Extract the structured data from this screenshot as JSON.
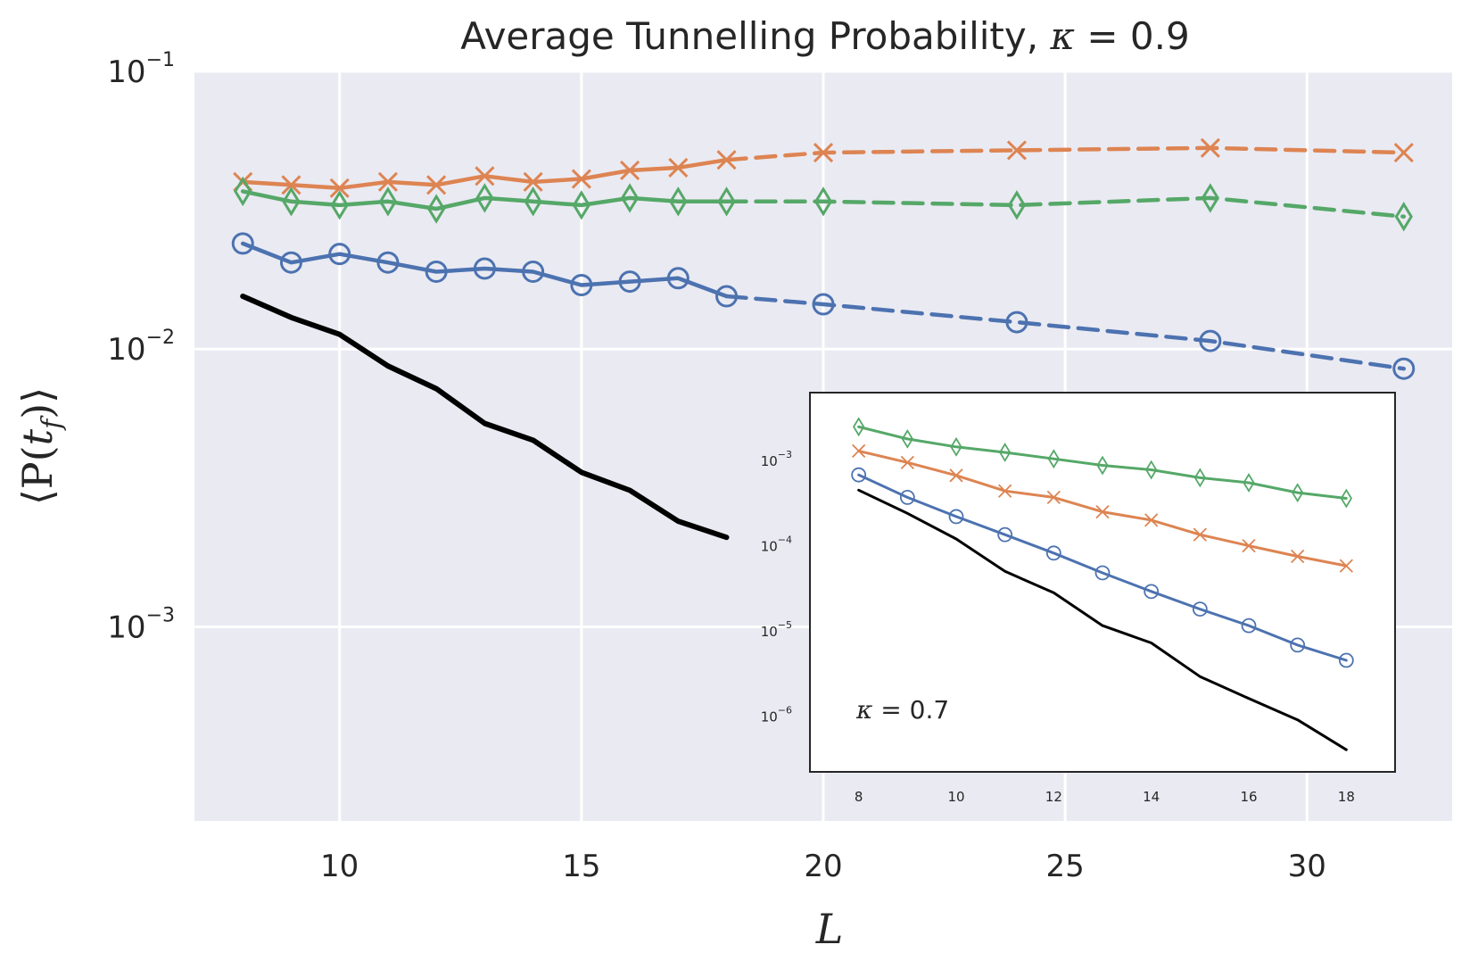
{
  "chart_data": [
    {
      "type": "line",
      "title": "Average Tunnelling Probability, κ = 0.9",
      "title_prefix": "Average Tunnelling Probability, ",
      "title_kappa": "κ",
      "title_value": " = 0.9",
      "xlabel": "L",
      "ylabel": "⟨P(t_f)⟩",
      "ylabel_parts": {
        "open": "⟨P(",
        "t": "t",
        "sub": "f",
        "close": ")⟩"
      },
      "yscale": "log",
      "xlim": [
        7.0,
        33.0
      ],
      "ylim": [
        0.0002,
        0.1
      ],
      "xticks": [
        10,
        15,
        20,
        25,
        30
      ],
      "xtick_labels": [
        "10",
        "15",
        "20",
        "25",
        "30"
      ],
      "yticks": [
        0.001,
        0.01,
        0.1
      ],
      "ytick_labels": [
        {
          "base": "10",
          "exp": "−3"
        },
        {
          "base": "10",
          "exp": "−2"
        },
        {
          "base": "10",
          "exp": "−1"
        }
      ],
      "grid": true,
      "background": "#eaeaf2",
      "series": [
        {
          "name": "orange-x",
          "color": "#dd8452",
          "marker": "x",
          "solid": {
            "x": [
              8,
              9,
              10,
              11,
              12,
              13,
              14,
              15,
              16,
              17,
              18
            ],
            "y": [
              0.04,
              0.039,
              0.038,
              0.04,
              0.039,
              0.042,
              0.04,
              0.041,
              0.044,
              0.045,
              0.048
            ]
          },
          "dashed": {
            "x": [
              18,
              20,
              24,
              28,
              32
            ],
            "y": [
              0.048,
              0.051,
              0.052,
              0.053,
              0.051
            ]
          }
        },
        {
          "name": "green-diamond",
          "color": "#55a868",
          "marker": "diamond",
          "solid": {
            "x": [
              8,
              9,
              10,
              11,
              12,
              13,
              14,
              15,
              16,
              17,
              18
            ],
            "y": [
              0.037,
              0.034,
              0.033,
              0.034,
              0.032,
              0.035,
              0.034,
              0.033,
              0.035,
              0.034,
              0.034
            ]
          },
          "dashed": {
            "x": [
              18,
              20,
              24,
              28,
              32
            ],
            "y": [
              0.034,
              0.034,
              0.033,
              0.035,
              0.03
            ]
          }
        },
        {
          "name": "blue-circle",
          "color": "#4c72b0",
          "marker": "circle",
          "solid": {
            "x": [
              8,
              9,
              10,
              11,
              12,
              13,
              14,
              15,
              16,
              17,
              18
            ],
            "y": [
              0.024,
              0.0205,
              0.022,
              0.0205,
              0.019,
              0.0195,
              0.019,
              0.017,
              0.0175,
              0.018,
              0.0155
            ]
          },
          "dashed": {
            "x": [
              18,
              20,
              24,
              28,
              32
            ],
            "y": [
              0.0155,
              0.0145,
              0.0125,
              0.0107,
              0.0085
            ]
          }
        },
        {
          "name": "black-line",
          "color": "#000000",
          "marker": "none",
          "solid": {
            "x": [
              8,
              9,
              10,
              11,
              12,
              13,
              14,
              15,
              16,
              17,
              18
            ],
            "y": [
              0.0155,
              0.013,
              0.0113,
              0.0087,
              0.0072,
              0.0054,
              0.0047,
              0.0036,
              0.0031,
              0.0024,
              0.0021
            ]
          }
        }
      ]
    },
    {
      "type": "line",
      "role": "inset",
      "annotation_kappa": "κ",
      "annotation_value": " = 0.7",
      "yscale": "log",
      "xlim": [
        7.0,
        19.0
      ],
      "ylim": [
        2.2e-07,
        0.0063
      ],
      "xticks": [
        8,
        10,
        12,
        14,
        16,
        18
      ],
      "xtick_labels": [
        "8",
        "10",
        "12",
        "14",
        "16",
        "18"
      ],
      "yticks": [
        1e-06,
        1e-05,
        0.0001,
        0.001
      ],
      "ytick_labels": [
        {
          "base": "10",
          "exp": "−6"
        },
        {
          "base": "10",
          "exp": "−5"
        },
        {
          "base": "10",
          "exp": "−4"
        },
        {
          "base": "10",
          "exp": "−3"
        }
      ],
      "grid": false,
      "series": [
        {
          "name": "green-diamond",
          "color": "#55a868",
          "marker": "diamond",
          "x": [
            8,
            9,
            10,
            11,
            12,
            13,
            14,
            15,
            16,
            17,
            18
          ],
          "y": [
            0.0025,
            0.0018,
            0.00145,
            0.00125,
            0.00105,
            0.00088,
            0.00078,
            0.00063,
            0.00055,
            0.00042,
            0.00036
          ]
        },
        {
          "name": "orange-x",
          "color": "#dd8452",
          "marker": "x",
          "x": [
            8,
            9,
            10,
            11,
            12,
            13,
            14,
            15,
            16,
            17,
            18
          ],
          "y": [
            0.0013,
            0.00095,
            0.00067,
            0.00044,
            0.00037,
            0.00025,
            0.0002,
            0.000135,
            0.0001,
            7.5e-05,
            5.8e-05
          ]
        },
        {
          "name": "blue-circle",
          "color": "#4c72b0",
          "marker": "circle",
          "x": [
            8,
            9,
            10,
            11,
            12,
            13,
            14,
            15,
            16,
            17,
            18
          ],
          "y": [
            0.00068,
            0.00037,
            0.00022,
            0.000135,
            8.2e-05,
            4.8e-05,
            2.9e-05,
            1.8e-05,
            1.15e-05,
            6.8e-06,
            4.5e-06
          ]
        },
        {
          "name": "black-line",
          "color": "#000000",
          "marker": "none",
          "x": [
            8,
            9,
            10,
            11,
            12,
            13,
            14,
            15,
            16,
            17,
            18
          ],
          "y": [
            0.00045,
            0.00024,
            0.00012,
            5e-05,
            2.8e-05,
            1.15e-05,
            7.2e-06,
            2.9e-06,
            1.6e-06,
            9e-07,
            4e-07
          ]
        }
      ]
    }
  ]
}
